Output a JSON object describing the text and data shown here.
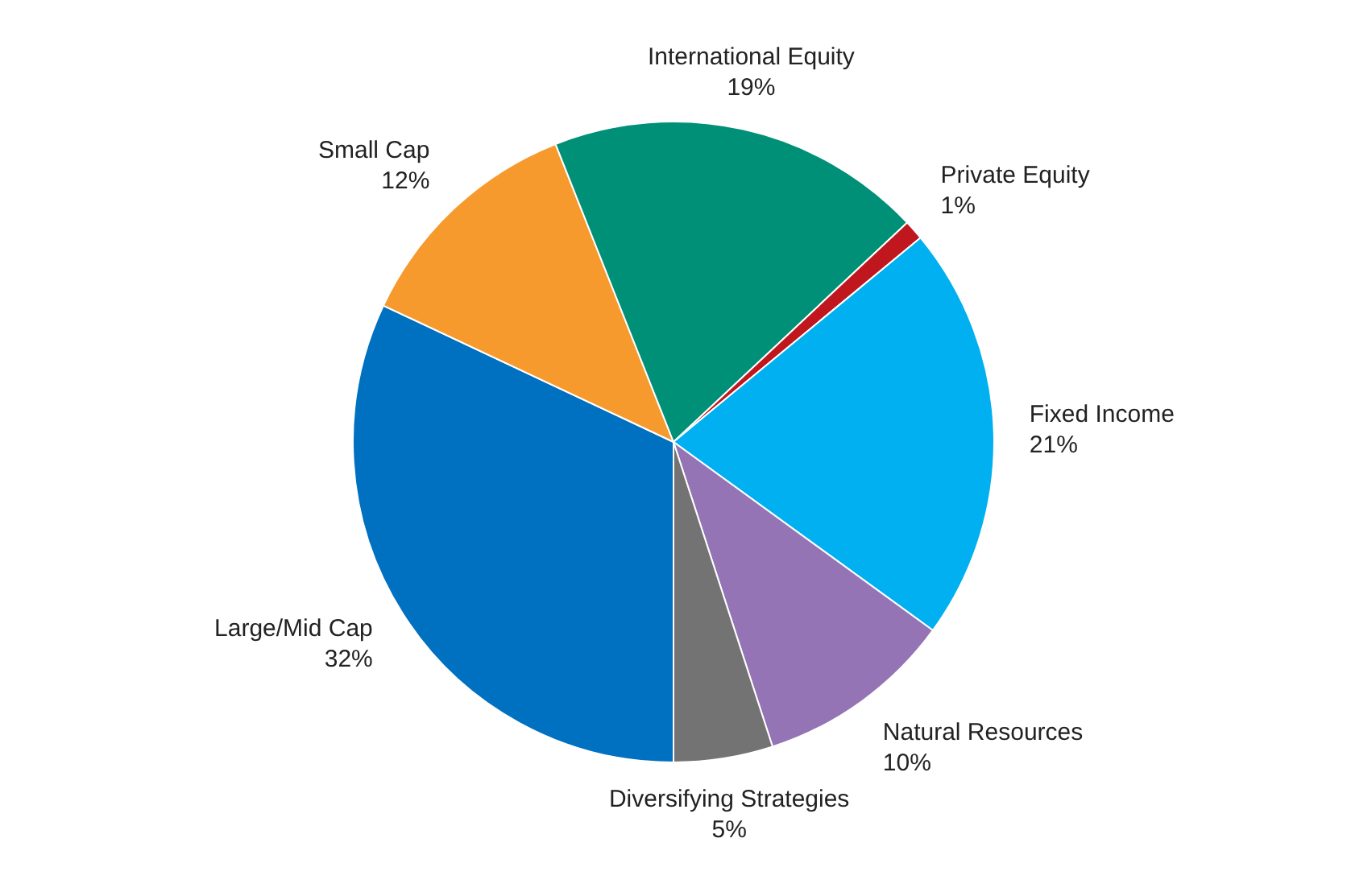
{
  "chart_data": {
    "type": "pie",
    "categories": [
      "Large/Mid Cap",
      "Small Cap",
      "International Equity",
      "Private Equity",
      "Fixed Income",
      "Natural Resources",
      "Diversifying Strategies"
    ],
    "values": [
      32,
      12,
      19,
      1,
      21,
      10,
      5
    ],
    "value_labels": [
      "32%",
      "12%",
      "19%",
      "1%",
      "21%",
      "10%",
      "5%"
    ],
    "colors": [
      "#0070c0",
      "#f79a2e",
      "#009077",
      "#c0171e",
      "#00b0f0",
      "#9474b4",
      "#737373"
    ],
    "legend": false
  }
}
